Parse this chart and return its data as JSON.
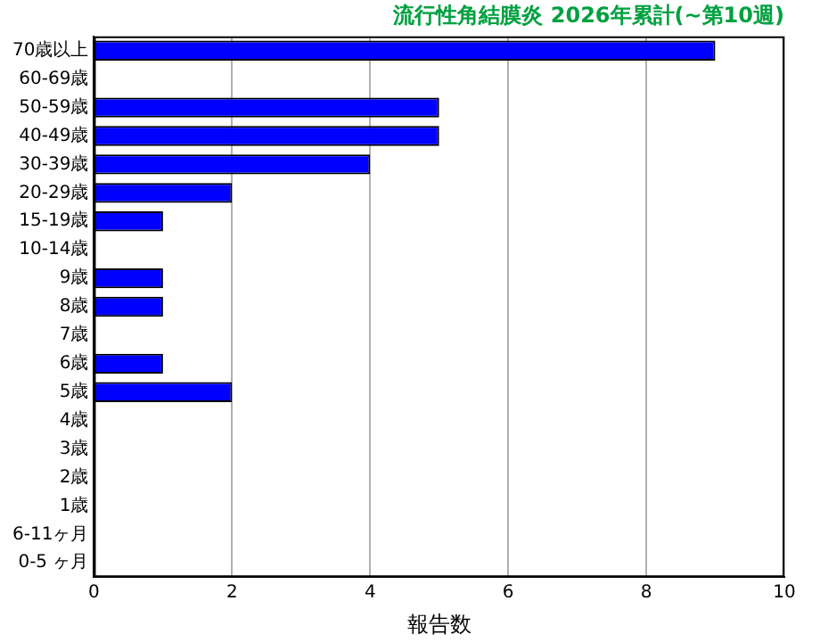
{
  "chart_data": {
    "type": "bar",
    "orientation": "horizontal",
    "title": "流行性角結膜炎 2026年累計(~第10週)",
    "xlabel": "報告数",
    "categories": [
      "70歳以上",
      "60-69歳",
      "50-59歳",
      "40-49歳",
      "30-39歳",
      "20-29歳",
      "15-19歳",
      "10-14歳",
      "9歳",
      "8歳",
      "7歳",
      "6歳",
      "5歳",
      "4歳",
      "3歳",
      "2歳",
      "1歳",
      "6-11ヶ月",
      "0-5 ヶ月"
    ],
    "values": [
      9,
      0,
      5,
      5,
      4,
      2,
      1,
      0,
      1,
      1,
      0,
      1,
      2,
      0,
      0,
      0,
      0,
      0,
      0
    ],
    "color": "#0000ff",
    "xlim": [
      0,
      10
    ],
    "xticks": [
      0,
      2,
      4,
      6,
      8,
      10
    ],
    "grid": "x",
    "legend": false
  }
}
